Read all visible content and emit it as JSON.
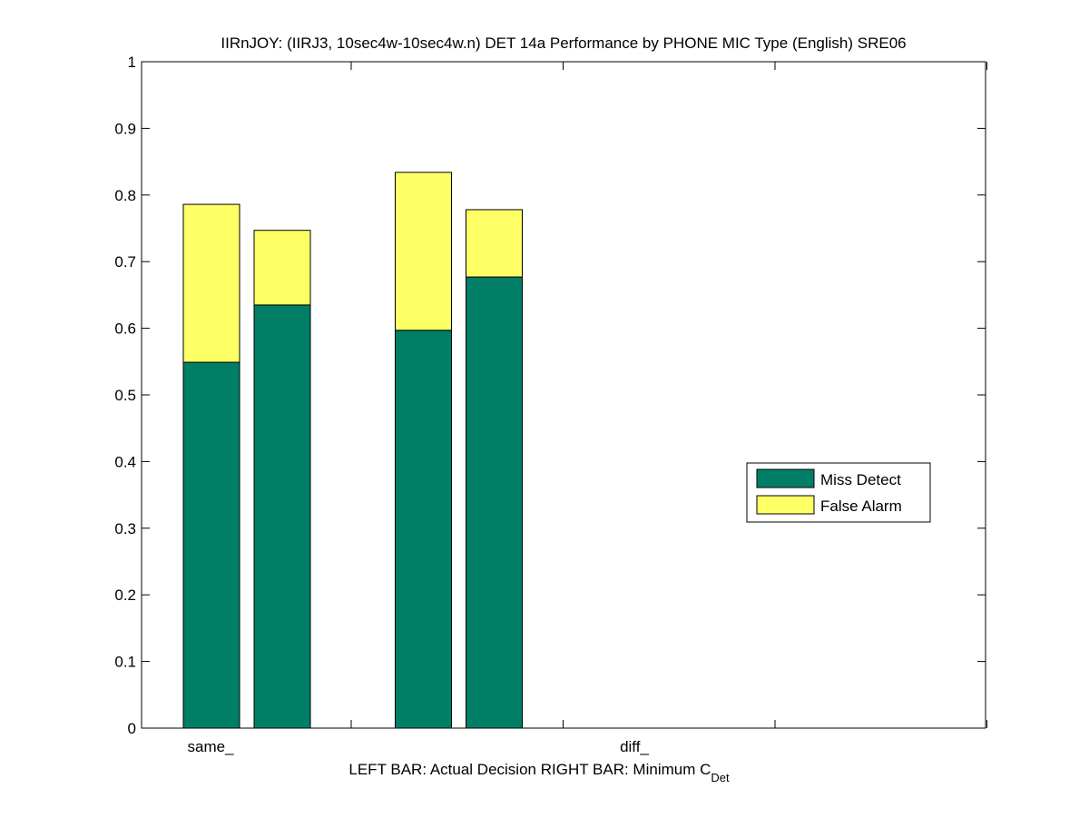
{
  "chart_data": {
    "type": "bar",
    "stacked": true,
    "title": "IIRnJOY: (IIRJ3, 10sec4w-10sec4w.n) DET 14a Performance by PHONE MIC Type (English) SRE06",
    "xlabel_parts": {
      "main": "LEFT BAR: Actual Decision      RIGHT BAR: Minimum C",
      "subscript": "Det"
    },
    "ylabel": "",
    "categories": [
      "same_",
      "diff_"
    ],
    "bars_per_category": [
      "Actual Decision",
      "Minimum C_Det"
    ],
    "ylim": [
      0,
      1
    ],
    "yticks": [
      "0",
      "0.1",
      "0.2",
      "0.3",
      "0.4",
      "0.5",
      "0.6",
      "0.7",
      "0.8",
      "0.9",
      "1"
    ],
    "series": [
      {
        "name": "Miss Detect",
        "color": "#007f66",
        "values": [
          [
            0.549,
            0.635
          ],
          [
            0.597,
            0.677
          ]
        ]
      },
      {
        "name": "False Alarm",
        "color": "#ffff66",
        "values": [
          [
            0.237,
            0.112
          ],
          [
            0.237,
            0.101
          ]
        ]
      }
    ],
    "legend_position": "right-middle",
    "grid": false
  }
}
